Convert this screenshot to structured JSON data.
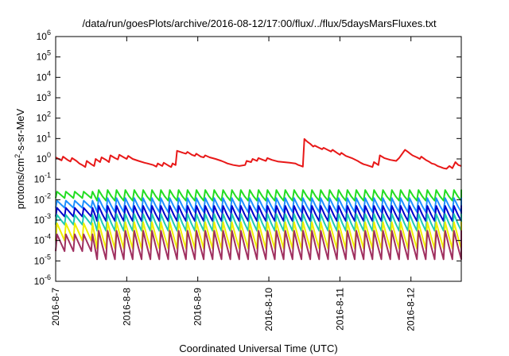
{
  "chart_data": {
    "type": "line",
    "title": "/data/run/goesPlots/archive/2016-08-12/17:00/flux/../flux/5daysMarsFluxes.txt",
    "xlabel": "Coordinated Universal Time (UTC)",
    "ylabel": {
      "pre": "protons/cm",
      "sup": "2",
      "post": "-s-sr-MeV"
    },
    "yscale": "log",
    "ylim": [
      1e-06,
      1000000.0
    ],
    "yticks": [
      {
        "value": 1e-06,
        "base": "10",
        "exp": "-6"
      },
      {
        "value": 1e-05,
        "base": "10",
        "exp": "-5"
      },
      {
        "value": 0.0001,
        "base": "10",
        "exp": "-4"
      },
      {
        "value": 0.001,
        "base": "10",
        "exp": "-3"
      },
      {
        "value": 0.01,
        "base": "10",
        "exp": "-2"
      },
      {
        "value": 0.1,
        "base": "10",
        "exp": "-1"
      },
      {
        "value": 1,
        "base": "10",
        "exp": "0"
      },
      {
        "value": 10,
        "base": "10",
        "exp": "1"
      },
      {
        "value": 100,
        "base": "10",
        "exp": "2"
      },
      {
        "value": 1000,
        "base": "10",
        "exp": "3"
      },
      {
        "value": 10000,
        "base": "10",
        "exp": "4"
      },
      {
        "value": 100000,
        "base": "10",
        "exp": "5"
      },
      {
        "value": 1000000,
        "base": "10",
        "exp": "6"
      }
    ],
    "xlim": [
      "2016-08-07T00:00",
      "2016-08-12T17:00"
    ],
    "xticks": [
      {
        "value": "2016-08-07T00:00",
        "label": "2016-8-7"
      },
      {
        "value": "2016-08-08T00:00",
        "label": "2016-8-8"
      },
      {
        "value": "2016-08-09T00:00",
        "label": "2016-8-9"
      },
      {
        "value": "2016-08-10T00:00",
        "label": "2016-8-10"
      },
      {
        "value": "2016-08-11T00:00",
        "label": "2016-8-11"
      },
      {
        "value": "2016-08-12T00:00",
        "label": "2016-8-12"
      }
    ],
    "grid": false,
    "legend": "none",
    "series": [
      {
        "color": "#e81818",
        "points": [
          [
            "2016-08-07T00:00",
            1.2
          ],
          [
            "2016-08-07T01:00",
            1.0
          ],
          [
            "2016-08-07T02:00",
            0.85
          ],
          [
            "2016-08-07T02:30",
            1.3
          ],
          [
            "2016-08-07T04:00",
            0.9
          ],
          [
            "2016-08-07T05:00",
            0.75
          ],
          [
            "2016-08-07T05:30",
            1.1
          ],
          [
            "2016-08-07T07:00",
            0.8
          ],
          [
            "2016-08-07T08:00",
            0.6
          ],
          [
            "2016-08-07T09:00",
            0.5
          ],
          [
            "2016-08-07T10:00",
            0.4
          ],
          [
            "2016-08-07T10:30",
            0.8
          ],
          [
            "2016-08-07T12:00",
            0.55
          ],
          [
            "2016-08-07T13:00",
            0.45
          ],
          [
            "2016-08-07T13:30",
            1.0
          ],
          [
            "2016-08-07T15:00",
            0.7
          ],
          [
            "2016-08-07T15:30",
            1.2
          ],
          [
            "2016-08-07T17:00",
            0.9
          ],
          [
            "2016-08-07T18:00",
            0.7
          ],
          [
            "2016-08-07T18:30",
            1.5
          ],
          [
            "2016-08-07T20:00",
            1.1
          ],
          [
            "2016-08-07T21:00",
            0.95
          ],
          [
            "2016-08-07T21:30",
            1.6
          ],
          [
            "2016-08-07T23:00",
            1.2
          ],
          [
            "2016-08-08T00:00",
            1.0
          ],
          [
            "2016-08-08T00:30",
            1.4
          ],
          [
            "2016-08-08T02:00",
            1.0
          ],
          [
            "2016-08-08T04:00",
            0.8
          ],
          [
            "2016-08-08T06:00",
            0.65
          ],
          [
            "2016-08-08T07:00",
            0.6
          ],
          [
            "2016-08-08T08:00",
            0.55
          ],
          [
            "2016-08-08T09:00",
            0.5
          ],
          [
            "2016-08-08T10:00",
            0.42
          ],
          [
            "2016-08-08T10:30",
            0.6
          ],
          [
            "2016-08-08T12:00",
            0.45
          ],
          [
            "2016-08-08T12:30",
            0.65
          ],
          [
            "2016-08-08T14:00",
            0.48
          ],
          [
            "2016-08-08T15:00",
            0.4
          ],
          [
            "2016-08-08T15:30",
            0.6
          ],
          [
            "2016-08-08T16:30",
            0.5
          ],
          [
            "2016-08-08T17:00",
            2.5
          ],
          [
            "2016-08-08T19:00",
            2.0
          ],
          [
            "2016-08-08T20:00",
            1.8
          ],
          [
            "2016-08-08T20:30",
            2.2
          ],
          [
            "2016-08-08T22:00",
            1.6
          ],
          [
            "2016-08-08T23:00",
            1.4
          ],
          [
            "2016-08-08T23:30",
            1.8
          ],
          [
            "2016-08-09T01:00",
            1.3
          ],
          [
            "2016-08-09T02:00",
            1.2
          ],
          [
            "2016-08-09T02:30",
            1.5
          ],
          [
            "2016-08-09T04:00",
            1.2
          ],
          [
            "2016-08-09T06:00",
            1.0
          ],
          [
            "2016-08-09T08:00",
            0.8
          ],
          [
            "2016-08-09T09:00",
            0.7
          ],
          [
            "2016-08-09T10:00",
            0.6
          ],
          [
            "2016-08-09T12:00",
            0.5
          ],
          [
            "2016-08-09T14:00",
            0.45
          ],
          [
            "2016-08-09T16:00",
            0.5
          ],
          [
            "2016-08-09T16:30",
            0.8
          ],
          [
            "2016-08-09T18:00",
            0.7
          ],
          [
            "2016-08-09T18:30",
            1.0
          ],
          [
            "2016-08-09T20:00",
            0.8
          ],
          [
            "2016-08-09T20:30",
            1.1
          ],
          [
            "2016-08-09T22:00",
            0.9
          ],
          [
            "2016-08-09T23:00",
            0.8
          ],
          [
            "2016-08-09T23:30",
            1.1
          ],
          [
            "2016-08-10T01:00",
            0.9
          ],
          [
            "2016-08-10T03:00",
            0.75
          ],
          [
            "2016-08-10T05:00",
            0.7
          ],
          [
            "2016-08-10T07:00",
            0.65
          ],
          [
            "2016-08-10T09:00",
            0.6
          ],
          [
            "2016-08-10T10:00",
            0.5
          ],
          [
            "2016-08-10T11:00",
            0.45
          ],
          [
            "2016-08-10T11:30",
            0.42
          ],
          [
            "2016-08-10T12:00",
            9.5
          ],
          [
            "2016-08-10T13:00",
            7.0
          ],
          [
            "2016-08-10T14:00",
            5.5
          ],
          [
            "2016-08-10T15:00",
            4.0
          ],
          [
            "2016-08-10T15:30",
            4.5
          ],
          [
            "2016-08-10T17:00",
            3.5
          ],
          [
            "2016-08-10T18:00",
            3.0
          ],
          [
            "2016-08-10T18:30",
            3.5
          ],
          [
            "2016-08-10T20:00",
            2.7
          ],
          [
            "2016-08-10T21:00",
            2.3
          ],
          [
            "2016-08-10T21:30",
            2.8
          ],
          [
            "2016-08-10T23:00",
            2.0
          ],
          [
            "2016-08-11T00:00",
            1.6
          ],
          [
            "2016-08-11T00:30",
            2.0
          ],
          [
            "2016-08-11T02:00",
            1.4
          ],
          [
            "2016-08-11T04:00",
            1.1
          ],
          [
            "2016-08-11T06:00",
            0.8
          ],
          [
            "2016-08-11T07:00",
            0.65
          ],
          [
            "2016-08-11T08:00",
            0.55
          ],
          [
            "2016-08-11T09:00",
            0.5
          ],
          [
            "2016-08-11T10:00",
            0.45
          ],
          [
            "2016-08-11T11:00",
            0.4
          ],
          [
            "2016-08-11T11:30",
            0.7
          ],
          [
            "2016-08-11T13:00",
            0.5
          ],
          [
            "2016-08-11T13:30",
            1.5
          ],
          [
            "2016-08-11T15:00",
            1.1
          ],
          [
            "2016-08-11T17:00",
            0.9
          ],
          [
            "2016-08-11T19:00",
            0.8
          ],
          [
            "2016-08-11T20:00",
            1.1
          ],
          [
            "2016-08-11T22:00",
            2.8
          ],
          [
            "2016-08-11T23:00",
            2.2
          ],
          [
            "2016-08-12T00:00",
            1.7
          ],
          [
            "2016-08-12T00:30",
            1.5
          ],
          [
            "2016-08-12T02:00",
            1.2
          ],
          [
            "2016-08-12T03:00",
            1.0
          ],
          [
            "2016-08-12T03:30",
            1.3
          ],
          [
            "2016-08-12T05:00",
            0.9
          ],
          [
            "2016-08-12T06:00",
            0.75
          ],
          [
            "2016-08-12T07:00",
            0.6
          ],
          [
            "2016-08-12T08:00",
            0.55
          ],
          [
            "2016-08-12T09:00",
            0.45
          ],
          [
            "2016-08-12T10:00",
            0.4
          ],
          [
            "2016-08-12T11:00",
            0.35
          ],
          [
            "2016-08-12T12:00",
            0.33
          ],
          [
            "2016-08-12T13:00",
            0.45
          ],
          [
            "2016-08-12T14:00",
            0.35
          ],
          [
            "2016-08-12T15:00",
            0.7
          ],
          [
            "2016-08-12T16:00",
            0.5
          ],
          [
            "2016-08-12T17:00",
            0.45
          ]
        ]
      },
      {
        "color": "#22dd22",
        "pattern": {
          "start": "2016-08-07T00:00",
          "end": "2016-08-12T17:00",
          "period_hours": 3,
          "high": 0.03,
          "low": 0.009,
          "flat_until": "2016-08-07T14:00",
          "flat_value": 0.025,
          "flat_low": 0.012
        }
      },
      {
        "color": "#1e90ff",
        "pattern": {
          "start": "2016-08-07T00:00",
          "end": "2016-08-12T17:00",
          "period_hours": 3,
          "high": 0.012,
          "low": 0.0025,
          "flat_until": "2016-08-07T14:00",
          "flat_value": 0.009,
          "flat_low": 0.004
        }
      },
      {
        "color": "#0000cc",
        "pattern": {
          "start": "2016-08-07T00:00",
          "end": "2016-08-12T17:00",
          "period_hours": 3,
          "high": 0.005,
          "low": 0.0009,
          "flat_until": "2016-08-07T14:00",
          "flat_value": 0.004,
          "flat_low": 0.0015
        }
      },
      {
        "color": "#1ec8b4",
        "pattern": {
          "start": "2016-08-07T00:00",
          "end": "2016-08-12T17:00",
          "period_hours": 3,
          "high": 0.002,
          "low": 0.0003,
          "flat_until": "2016-08-07T14:00",
          "flat_value": 0.0018,
          "flat_low": 0.0006
        }
      },
      {
        "color": "#f0f000",
        "pattern": {
          "start": "2016-08-07T00:00",
          "end": "2016-08-12T17:00",
          "period_hours": 3,
          "high": 0.0008,
          "low": 4e-05,
          "flat_until": "2016-08-07T14:00",
          "flat_value": 0.0007,
          "flat_low": 0.0001
        }
      },
      {
        "color": "#a03060",
        "pattern": {
          "start": "2016-08-07T00:00",
          "end": "2016-08-12T17:00",
          "period_hours": 3,
          "high": 0.0003,
          "low": 1.2e-05,
          "flat_until": "2016-08-07T14:00",
          "flat_value": 0.0002,
          "flat_low": 3e-05
        }
      }
    ]
  }
}
